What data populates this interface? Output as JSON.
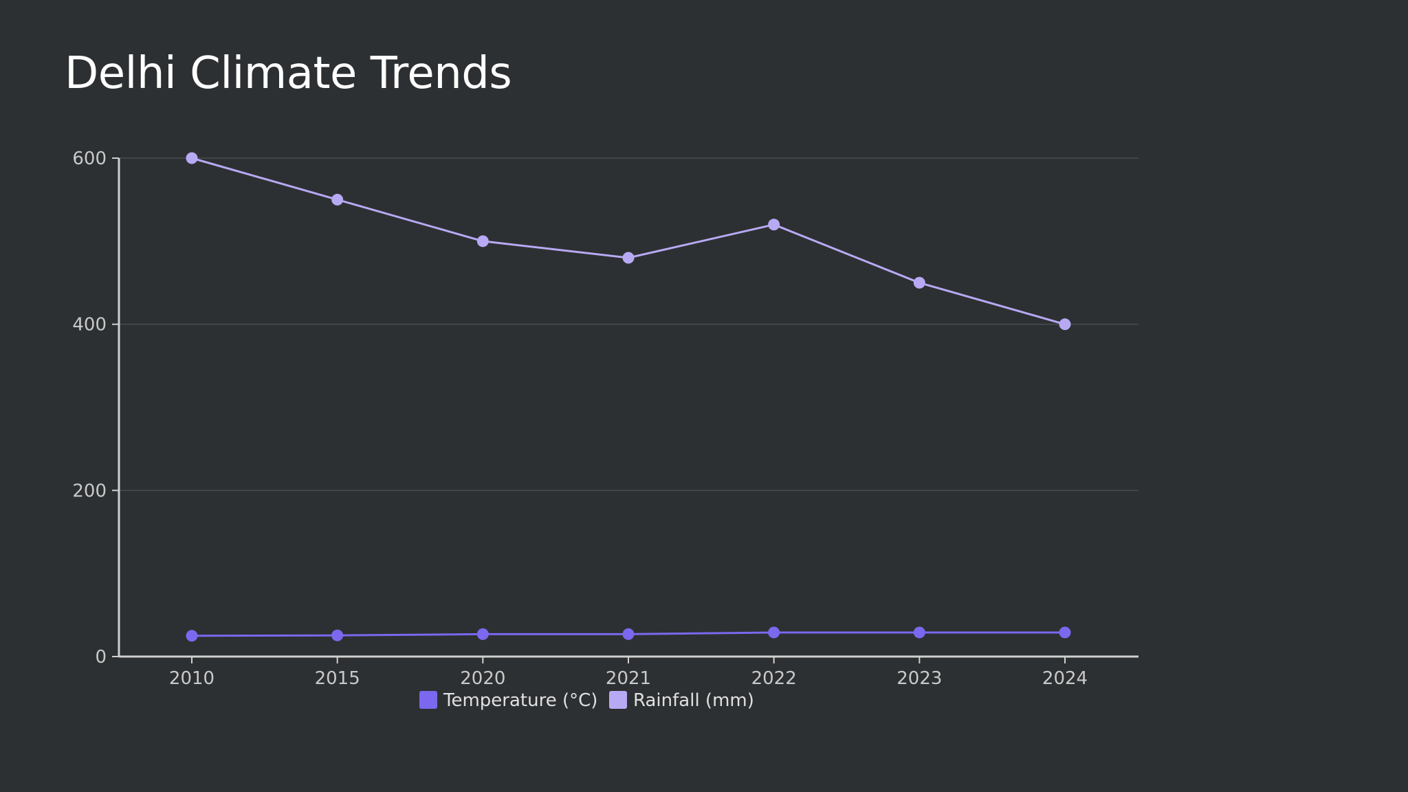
{
  "chart_data": {
    "type": "line",
    "title": "Delhi Climate Trends",
    "xlabel": "",
    "ylabel": "",
    "categories": [
      "2010",
      "2015",
      "2020",
      "2021",
      "2022",
      "2023",
      "2024"
    ],
    "ylim": [
      0,
      600
    ],
    "yticks": [
      0,
      200,
      400,
      600
    ],
    "grid": true,
    "legend_position": "bottom",
    "series": [
      {
        "name": "Temperature (°C)",
        "color": "#7b68ee",
        "values": [
          25,
          25.5,
          27,
          27,
          29,
          29,
          29
        ]
      },
      {
        "name": "Rainfall (mm)",
        "color": "#b8a9f5",
        "values": [
          600,
          550,
          500,
          480,
          520,
          450,
          400
        ]
      }
    ]
  }
}
